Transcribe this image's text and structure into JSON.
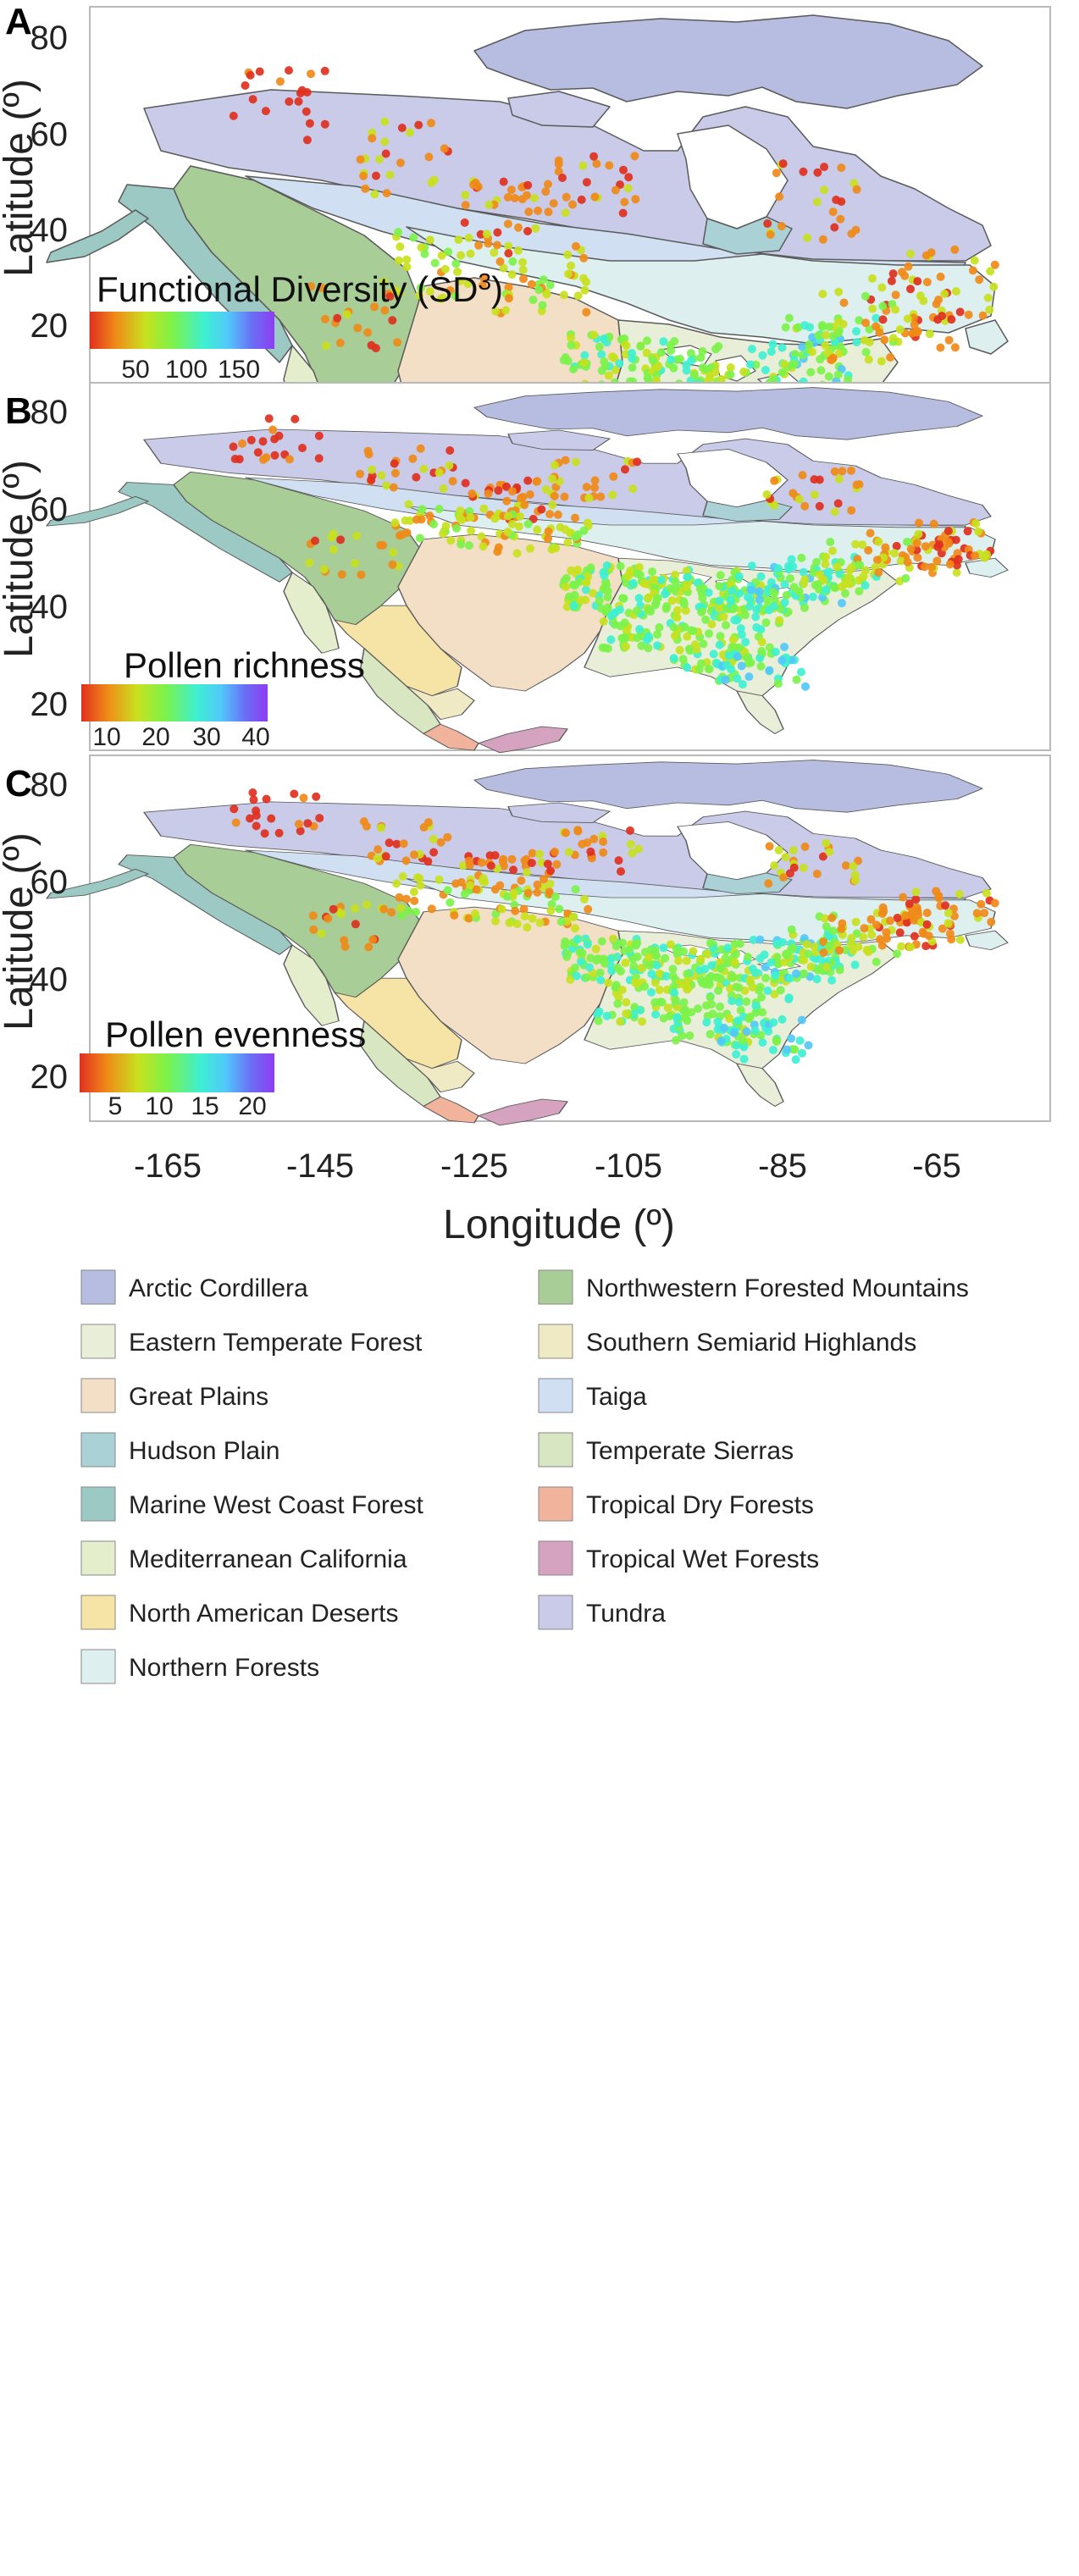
{
  "panels": [
    {
      "letter": "A",
      "colorbar_title": "Functional Diversity (SD",
      "colorbar_title_sup": "3",
      "colorbar_title_close": ")",
      "colorbar_ticks": [
        "50",
        "100",
        "150"
      ],
      "yticks": [
        "80",
        "60",
        "40",
        "20"
      ]
    },
    {
      "letter": "B",
      "colorbar_title": "Pollen richness",
      "colorbar_title_sup": "",
      "colorbar_title_close": "",
      "colorbar_ticks": [
        "10",
        "20",
        "30",
        "40"
      ],
      "yticks": [
        "80",
        "60",
        "40",
        "20"
      ]
    },
    {
      "letter": "C",
      "colorbar_title": "Pollen evenness",
      "colorbar_title_sup": "",
      "colorbar_title_close": "",
      "colorbar_ticks": [
        "5",
        "10",
        "15",
        "20"
      ],
      "yticks": [
        "80",
        "60",
        "40",
        "20"
      ]
    }
  ],
  "y_axis_label": "Latitude (º)",
  "x_axis_label": "Longitude (º)",
  "x_ticks": [
    "-165",
    "-145",
    "-125",
    "-105",
    "-85",
    "-65"
  ],
  "colors": {
    "arctic_cordillera": "#b7bde0",
    "eastern_temperate_forest": "#e8eed7",
    "great_plains": "#f3dfc6",
    "hudson_plain": "#a9d1d6",
    "marine_west_coast_forest": "#9cc9c3",
    "mediterranean_california": "#e4eecd",
    "north_american_deserts": "#f6e3a6",
    "northern_forests": "#ddf0ef",
    "northwestern_forested_mountains": "#a8cd96",
    "southern_semiarid_highlands": "#efe9c4",
    "taiga": "#d0e0f2",
    "temperate_sierras": "#d9e6c2",
    "tropical_dry_forests": "#f1b39c",
    "tropical_wet_forests": "#d5a2c0",
    "tundra": "#c9cbe9",
    "colorbar_gradient": [
      "#e0301e",
      "#f08a18",
      "#c8e11e",
      "#7cf24a",
      "#3ef0d2",
      "#52c8fa",
      "#6a6ef5",
      "#8f3cf2"
    ]
  },
  "legend": {
    "left": [
      {
        "label": "Arctic Cordillera",
        "color_key": "arctic_cordillera"
      },
      {
        "label": "Eastern Temperate Forest",
        "color_key": "eastern_temperate_forest"
      },
      {
        "label": "Great Plains",
        "color_key": "great_plains"
      },
      {
        "label": "Hudson Plain",
        "color_key": "hudson_plain"
      },
      {
        "label": "Marine West Coast Forest",
        "color_key": "marine_west_coast_forest"
      },
      {
        "label": "Mediterranean California",
        "color_key": "mediterranean_california"
      },
      {
        "label": "North American Deserts",
        "color_key": "north_american_deserts"
      },
      {
        "label": "Northern Forests",
        "color_key": "northern_forests"
      }
    ],
    "right": [
      {
        "label": "Northwestern Forested Mountains",
        "color_key": "northwestern_forested_mountains"
      },
      {
        "label": "Southern Semiarid Highlands",
        "color_key": "southern_semiarid_highlands"
      },
      {
        "label": "Taiga",
        "color_key": "taiga"
      },
      {
        "label": "Temperate Sierras",
        "color_key": "temperate_sierras"
      },
      {
        "label": "Tropical Dry Forests",
        "color_key": "tropical_dry_forests"
      },
      {
        "label": "Tropical Wet Forests",
        "color_key": "tropical_wet_forests"
      },
      {
        "label": "Tundra",
        "color_key": "tundra"
      }
    ]
  }
}
